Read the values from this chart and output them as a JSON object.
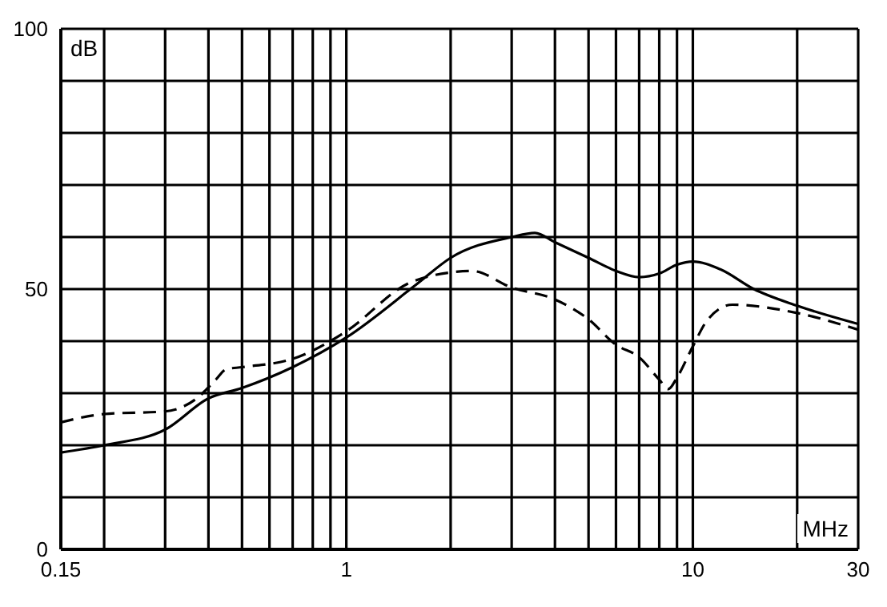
{
  "chart_data": {
    "type": "line",
    "xlabel": "MHz",
    "ylabel": "dB",
    "log": "x",
    "grid": true,
    "marker": "none",
    "xlim": [
      0.15,
      30
    ],
    "xticks": [
      0.15,
      {
        "value": 0.2,
        "label": null
      },
      {
        "value": 0.3,
        "label": null
      },
      {
        "value": 0.4,
        "label": null
      },
      {
        "value": 0.5,
        "label": null
      },
      {
        "value": 0.6,
        "label": null
      },
      {
        "value": 0.7,
        "label": null
      },
      {
        "value": 0.8,
        "label": null
      },
      {
        "value": 0.9,
        "label": null
      },
      1,
      {
        "value": 2,
        "label": null
      },
      {
        "value": 3,
        "label": null
      },
      {
        "value": 4,
        "label": null
      },
      {
        "value": 5,
        "label": null
      },
      {
        "value": 6,
        "label": null
      },
      {
        "value": 7,
        "label": null
      },
      {
        "value": 8,
        "label": null
      },
      {
        "value": 9,
        "label": null
      },
      10,
      {
        "value": 20,
        "label": null
      },
      30
    ],
    "ylim": [
      0,
      100
    ],
    "yticks": [
      0,
      {
        "value": 10,
        "label": null
      },
      {
        "value": 20,
        "label": null
      },
      {
        "value": 30,
        "label": null
      },
      {
        "value": 40,
        "label": null
      },
      50,
      {
        "value": 60,
        "label": null
      },
      {
        "value": 70,
        "label": null
      },
      {
        "value": 80,
        "label": null
      },
      {
        "value": 90,
        "label": null
      },
      100
    ],
    "series": [
      {
        "color": "#000000",
        "line_style": "solid",
        "x": [
          0.15,
          0.2,
          0.3,
          0.4,
          0.5,
          0.7,
          1,
          1.6,
          2,
          3,
          3.5,
          4,
          5,
          6,
          7,
          8,
          9,
          10,
          12,
          15,
          20,
          30
        ],
        "values": [
          18.6,
          20,
          23,
          29,
          31,
          35,
          40.7,
          51,
          56,
          60,
          60.8,
          59,
          56,
          53.5,
          52.3,
          53,
          54.7,
          55.3,
          53.8,
          50,
          46.8,
          43.3
        ]
      },
      {
        "color": "#000000",
        "line_style": "dashed",
        "x": [
          0.15,
          0.2,
          0.3,
          0.37,
          0.42,
          0.45,
          0.5,
          0.7,
          1,
          1.5,
          2,
          2.3,
          3,
          4,
          5,
          6,
          7,
          8,
          8.5,
          9,
          10,
          11,
          13,
          20,
          30
        ],
        "values": [
          24.4,
          26,
          26.5,
          29,
          32.6,
          34.6,
          35,
          36.6,
          41.9,
          51,
          53.2,
          53.5,
          50.3,
          48,
          44.2,
          39.3,
          36.9,
          32.6,
          30.8,
          33,
          39,
          44,
          47,
          45.4,
          42.2
        ]
      }
    ]
  }
}
